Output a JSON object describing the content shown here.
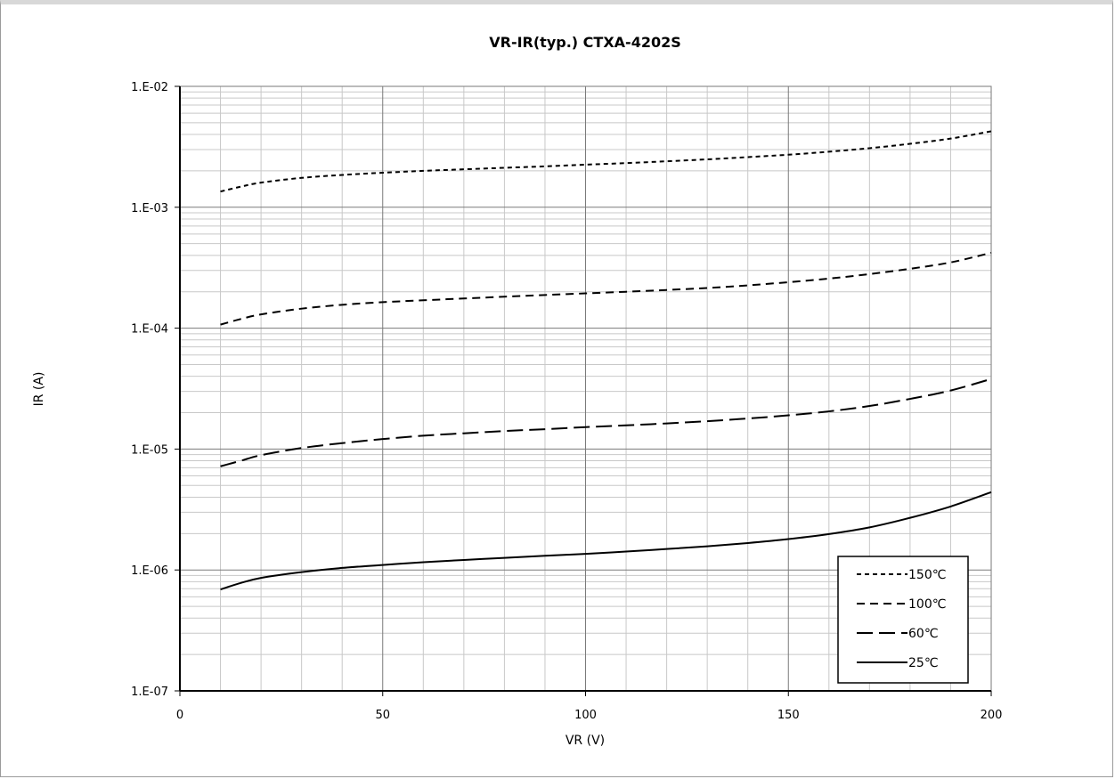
{
  "chart_data": {
    "type": "line",
    "title": "VR-IR(typ.) CTXA-4202S",
    "xlabel": "VR (V)",
    "ylabel": "IR (A)",
    "xlim": [
      0,
      200
    ],
    "ylim": [
      1e-07,
      0.01
    ],
    "yscale": "log",
    "x_ticks": [
      0,
      50,
      100,
      150,
      200
    ],
    "x_tick_labels": [
      "0",
      "50",
      "100",
      "150",
      "200"
    ],
    "y_ticks": [
      1e-07,
      1e-06,
      1e-05,
      0.0001,
      0.001,
      0.01
    ],
    "y_tick_labels": [
      "1.E-07",
      "1.E-06",
      "1.E-05",
      "1.E-04",
      "1.E-03",
      "1.E-02"
    ],
    "grid": true,
    "legend_position": "bottom-right",
    "x": [
      10,
      15,
      20,
      30,
      40,
      50,
      60,
      70,
      80,
      90,
      100,
      110,
      120,
      130,
      140,
      150,
      160,
      170,
      180,
      190,
      200
    ],
    "series": [
      {
        "name": "150℃",
        "dash": "short-dash",
        "values": [
          0.00135,
          0.00148,
          0.0016,
          0.00175,
          0.00185,
          0.00193,
          0.002,
          0.00206,
          0.00212,
          0.00218,
          0.00225,
          0.00232,
          0.0024,
          0.00249,
          0.0026,
          0.00272,
          0.00288,
          0.00308,
          0.00335,
          0.0037,
          0.00425
        ]
      },
      {
        "name": "100℃",
        "dash": "dash",
        "values": [
          0.000107,
          0.000119,
          0.00013,
          0.000145,
          0.000156,
          0.000164,
          0.00017,
          0.000176,
          0.000182,
          0.000188,
          0.000194,
          0.0002,
          0.000207,
          0.000215,
          0.000226,
          0.00024,
          0.000257,
          0.00028,
          0.00031,
          0.00035,
          0.00042
        ]
      },
      {
        "name": "60℃",
        "dash": "long-dash",
        "values": [
          7.2e-06,
          8e-06,
          8.9e-06,
          1.02e-05,
          1.12e-05,
          1.21e-05,
          1.29e-05,
          1.35e-05,
          1.41e-05,
          1.46e-05,
          1.52e-05,
          1.57e-05,
          1.63e-05,
          1.7e-05,
          1.79e-05,
          1.9e-05,
          2.05e-05,
          2.27e-05,
          2.6e-05,
          3.05e-05,
          3.8e-05
        ]
      },
      {
        "name": "25℃",
        "dash": "solid",
        "values": [
          6.9e-07,
          7.8e-07,
          8.6e-07,
          9.6e-07,
          1.04e-06,
          1.1e-06,
          1.16e-06,
          1.21e-06,
          1.26e-06,
          1.31e-06,
          1.36e-06,
          1.42e-06,
          1.49e-06,
          1.57e-06,
          1.67e-06,
          1.8e-06,
          1.98e-06,
          2.25e-06,
          2.7e-06,
          3.35e-06,
          4.4e-06
        ]
      }
    ]
  }
}
